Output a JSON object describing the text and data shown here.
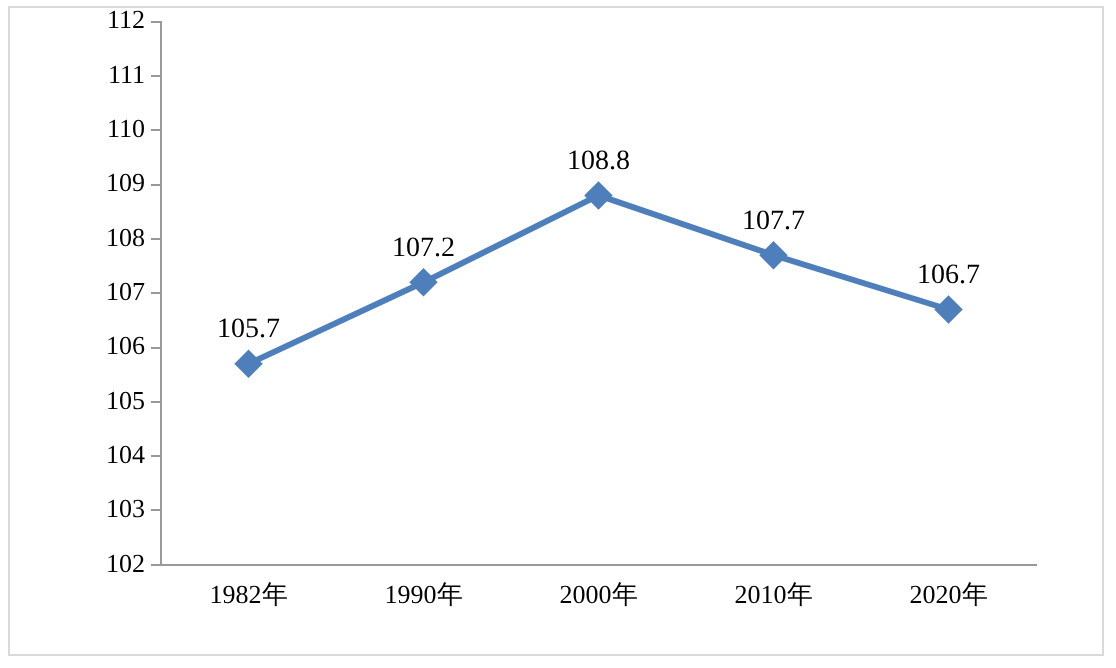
{
  "chart_data": {
    "type": "line",
    "categories": [
      "1982年",
      "1990年",
      "2000年",
      "2010年",
      "2020年"
    ],
    "series": [
      {
        "color": "#4f7fbb",
        "values": [
          105.7,
          107.2,
          108.8,
          107.7,
          106.7
        ]
      }
    ],
    "ylim": [
      102,
      112
    ],
    "yticks": [
      102,
      103,
      104,
      105,
      106,
      107,
      108,
      109,
      110,
      111,
      112
    ],
    "grid": false,
    "legend": false,
    "marker": "diamond",
    "line_style": "solid",
    "data_labels": true
  }
}
